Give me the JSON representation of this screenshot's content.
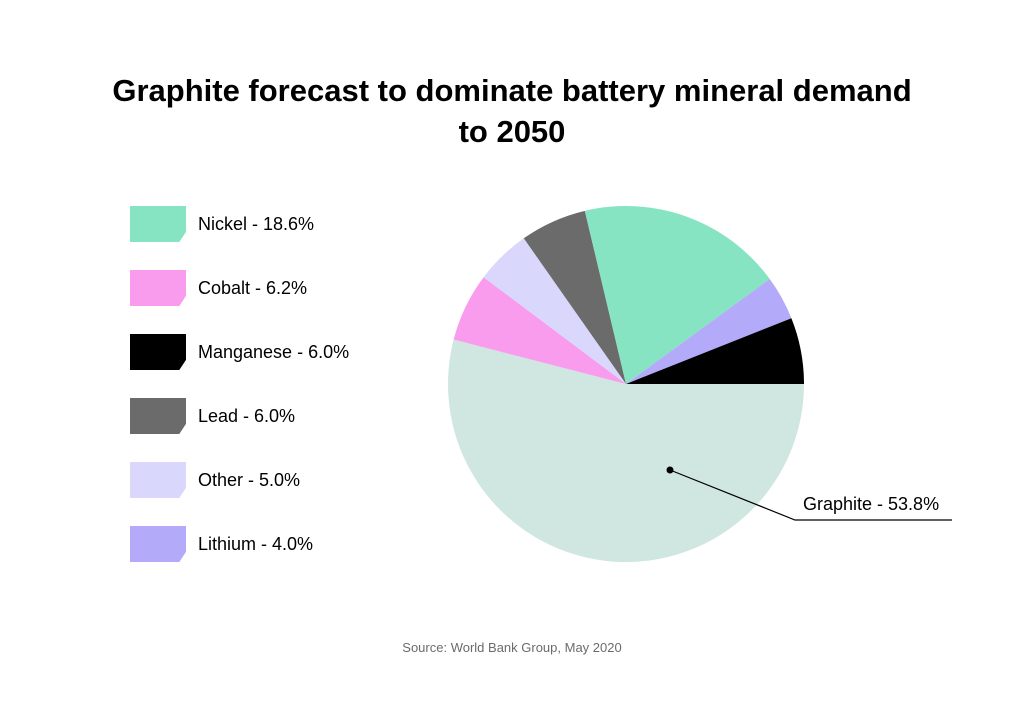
{
  "chart_data": {
    "type": "pie",
    "title": "Graphite forecast to dominate battery mineral demand to 2050",
    "slices": [
      {
        "name": "Graphite",
        "value": 53.8,
        "color": "#d0e6e0",
        "label": "Graphite - 53.8%"
      },
      {
        "name": "Cobalt",
        "value": 6.2,
        "color": "#f99cee",
        "label": "Cobalt - 6.2%"
      },
      {
        "name": "Other",
        "value": 5.0,
        "color": "#d9d7fc",
        "label": "Other - 5.0%"
      },
      {
        "name": "Lead",
        "value": 6.0,
        "color": "#6b6b6b",
        "label": "Lead - 6.0%"
      },
      {
        "name": "Nickel",
        "value": 18.6,
        "color": "#87e4c3",
        "label": "Nickel - 18.6%"
      },
      {
        "name": "Lithium",
        "value": 4.0,
        "color": "#b3aaf9",
        "label": "Lithium - 4.0%"
      },
      {
        "name": "Manganese",
        "value": 6.0,
        "color": "#000000",
        "label": "Manganese - 6.0%"
      }
    ],
    "legend": [
      {
        "label": "Nickel - 18.6%",
        "color": "#87e4c3"
      },
      {
        "label": "Cobalt - 6.2%",
        "color": "#f99cee"
      },
      {
        "label": "Manganese - 6.0%",
        "color": "#000000"
      },
      {
        "label": "Lead - 6.0%",
        "color": "#6b6b6b"
      },
      {
        "label": "Other - 5.0%",
        "color": "#d9d7fc"
      },
      {
        "label": "Lithium - 4.0%",
        "color": "#b3aaf9"
      }
    ],
    "legend_position": "left",
    "callout": "Graphite - 53.8%",
    "source": "Source: World Bank Group, May 2020"
  }
}
